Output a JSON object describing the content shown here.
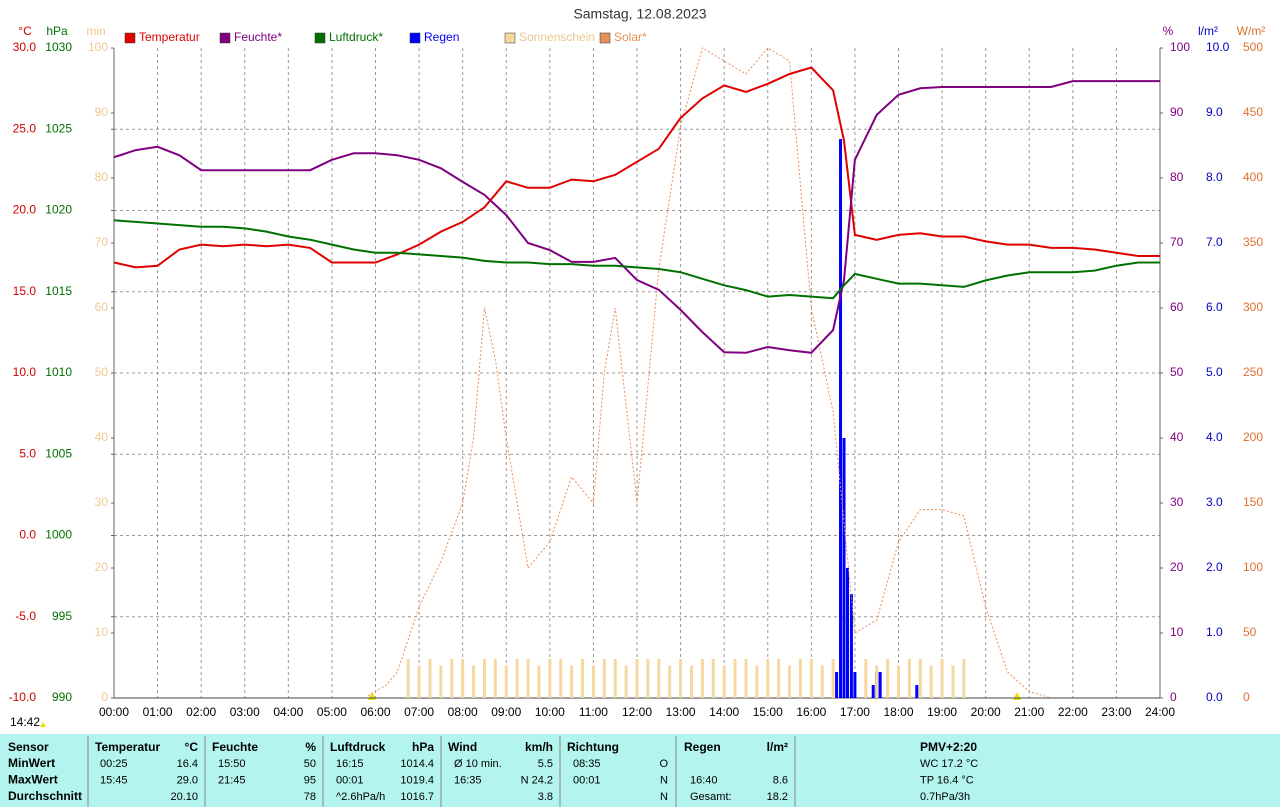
{
  "chart_data": {
    "type": "line",
    "title": "Samstag, 12.08.2023",
    "timestamp": "14:42",
    "grid": true,
    "xlim": [
      0,
      24
    ],
    "xticks": [
      {
        "value": 0,
        "label": "00:00"
      },
      {
        "value": 1,
        "label": "01:00"
      },
      {
        "value": 2,
        "label": "02:00"
      },
      {
        "value": 3,
        "label": "03:00"
      },
      {
        "value": 4,
        "label": "04:00"
      },
      {
        "value": 5,
        "label": "05:00"
      },
      {
        "value": 6,
        "label": "06:00"
      },
      {
        "value": 7,
        "label": "07:00"
      },
      {
        "value": 8,
        "label": "08:00"
      },
      {
        "value": 9,
        "label": "09:00"
      },
      {
        "value": 10,
        "label": "10:00"
      },
      {
        "value": 11,
        "label": "11:00"
      },
      {
        "value": 12,
        "label": "12:00"
      },
      {
        "value": 13,
        "label": "13:00"
      },
      {
        "value": 14,
        "label": "14:00"
      },
      {
        "value": 15,
        "label": "15:00"
      },
      {
        "value": 16,
        "label": "16:00"
      },
      {
        "value": 17,
        "label": "17:00"
      },
      {
        "value": 18,
        "label": "18:00"
      },
      {
        "value": 19,
        "label": "19:00"
      },
      {
        "value": 20,
        "label": "20:00"
      },
      {
        "value": 21,
        "label": "21:00"
      },
      {
        "value": 22,
        "label": "22:00"
      },
      {
        "value": 23,
        "label": "23:00"
      },
      {
        "value": 24,
        "label": "24:00"
      }
    ],
    "axes": {
      "temp": {
        "label": "°C",
        "side": "left",
        "color": "#d00000",
        "ylim": [
          -10,
          30
        ],
        "yticks": [
          {
            "value": -10,
            "label": "-10.0"
          },
          {
            "value": -5,
            "label": "-5.0"
          },
          {
            "value": 0,
            "label": "0.0"
          },
          {
            "value": 5,
            "label": "5.0"
          },
          {
            "value": 10,
            "label": "10.0"
          },
          {
            "value": 15,
            "label": "15.0"
          },
          {
            "value": 20,
            "label": "20.0"
          },
          {
            "value": 25,
            "label": "25.0"
          },
          {
            "value": 30,
            "label": "30.0"
          }
        ]
      },
      "press": {
        "label": "hPa",
        "side": "left",
        "color": "#007000",
        "ylim": [
          990,
          1030
        ],
        "yticks": [
          990,
          995,
          1000,
          1005,
          1010,
          1015,
          1020,
          1025,
          1030
        ]
      },
      "min": {
        "label": "min",
        "side": "left",
        "color": "#f0c890",
        "ylim": [
          0,
          100
        ],
        "yticks": [
          0,
          10,
          20,
          30,
          40,
          50,
          60,
          70,
          80,
          90,
          100
        ]
      },
      "hum": {
        "label": "%",
        "side": "right",
        "color": "#800080",
        "ylim": [
          0,
          100
        ],
        "yticks": [
          0,
          10,
          20,
          30,
          40,
          50,
          60,
          70,
          80,
          90,
          100
        ]
      },
      "rain": {
        "label": "l/m²",
        "side": "right",
        "color": "#0000c0",
        "ylim": [
          0,
          10
        ],
        "yticks": [
          {
            "value": 0,
            "label": "0.0"
          },
          {
            "value": 1,
            "label": "1.0"
          },
          {
            "value": 2,
            "label": "2.0"
          },
          {
            "value": 3,
            "label": "3.0"
          },
          {
            "value": 4,
            "label": "4.0"
          },
          {
            "value": 5,
            "label": "5.0"
          },
          {
            "value": 6,
            "label": "6.0"
          },
          {
            "value": 7,
            "label": "7.0"
          },
          {
            "value": 8,
            "label": "8.0"
          },
          {
            "value": 9,
            "label": "9.0"
          },
          {
            "value": 10,
            "label": "10.0"
          }
        ]
      },
      "solar": {
        "label": "W/m²",
        "side": "right",
        "color": "#e07030",
        "ylim": [
          0,
          500
        ],
        "yticks": [
          0,
          50,
          100,
          150,
          200,
          250,
          300,
          350,
          400,
          450,
          500
        ]
      }
    },
    "series": [
      {
        "name": "Temperatur",
        "color": "#e00000",
        "axis": "temp",
        "kind": "line",
        "x": [
          0,
          0.5,
          1,
          1.5,
          2,
          2.5,
          3,
          3.5,
          4,
          4.5,
          5,
          5.5,
          6,
          6.5,
          7,
          7.5,
          8,
          8.5,
          9,
          9.5,
          10,
          10.5,
          11,
          11.5,
          12,
          12.5,
          13,
          13.5,
          14,
          14.5,
          15,
          15.5,
          16,
          16.5,
          16.75,
          17,
          17.5,
          18,
          18.5,
          19,
          19.5,
          20,
          20.5,
          21,
          21.5,
          22,
          22.5,
          23,
          23.5,
          24
        ],
        "values": [
          16.8,
          16.5,
          16.6,
          17.6,
          17.9,
          17.8,
          17.9,
          17.8,
          17.9,
          17.7,
          16.8,
          16.8,
          16.8,
          17.3,
          17.9,
          18.7,
          19.3,
          20.2,
          21.8,
          21.4,
          21.4,
          21.9,
          21.8,
          22.2,
          23.0,
          23.8,
          25.7,
          26.9,
          27.7,
          27.3,
          27.8,
          28.4,
          28.8,
          27.4,
          24.3,
          18.5,
          18.2,
          18.5,
          18.6,
          18.4,
          18.4,
          18.1,
          17.9,
          17.9,
          17.7,
          17.7,
          17.6,
          17.4,
          17.2,
          17.2
        ]
      },
      {
        "name": "Feuchte*",
        "color": "#800080",
        "axis": "hum",
        "kind": "line",
        "x": [
          0,
          0.5,
          1,
          1.5,
          2,
          2.5,
          3,
          3.5,
          4,
          4.5,
          5,
          5.5,
          6,
          6.5,
          7,
          7.5,
          8,
          8.5,
          9,
          9.5,
          10,
          10.5,
          11,
          11.5,
          12,
          12.5,
          13,
          13.5,
          14,
          14.5,
          15,
          15.5,
          16,
          16.5,
          16.75,
          17,
          17.5,
          18,
          18.5,
          19,
          19.5,
          20,
          20.5,
          21,
          21.5,
          22,
          22.5,
          23,
          23.5,
          24
        ],
        "values": [
          83.2,
          84.3,
          84.8,
          83.5,
          81.2,
          81.2,
          81.2,
          81.2,
          81.2,
          81.2,
          82.8,
          83.8,
          83.8,
          83.5,
          82.8,
          81.5,
          79.4,
          77.4,
          74.3,
          70.0,
          68.9,
          67.1,
          67.1,
          67.7,
          64.3,
          62.8,
          59.7,
          56.3,
          53.2,
          53.1,
          54.0,
          53.5,
          53.1,
          56.6,
          64.3,
          82.8,
          89.7,
          92.8,
          93.8,
          94.0,
          94.0,
          94.0,
          94.0,
          94.0,
          94.0,
          94.9,
          94.9,
          94.9,
          94.9,
          94.9
        ]
      },
      {
        "name": "Luftdruck*",
        "color": "#007000",
        "axis": "press",
        "kind": "line",
        "x": [
          0,
          0.5,
          1,
          1.5,
          2,
          2.5,
          3,
          3.5,
          4,
          4.5,
          5,
          5.5,
          6,
          6.5,
          7,
          7.5,
          8,
          8.5,
          9,
          9.5,
          10,
          10.5,
          11,
          11.5,
          12,
          12.5,
          13,
          13.5,
          14,
          14.5,
          15,
          15.5,
          16,
          16.5,
          16.75,
          17,
          17.5,
          18,
          18.5,
          19,
          19.5,
          20,
          20.5,
          21,
          21.5,
          22,
          22.5,
          23,
          23.5,
          24
        ],
        "values": [
          1019.4,
          1019.3,
          1019.2,
          1019.1,
          1019.0,
          1019.0,
          1018.9,
          1018.7,
          1018.4,
          1018.2,
          1017.9,
          1017.6,
          1017.4,
          1017.4,
          1017.3,
          1017.2,
          1017.1,
          1016.9,
          1016.8,
          1016.8,
          1016.7,
          1016.7,
          1016.6,
          1016.6,
          1016.5,
          1016.4,
          1016.2,
          1015.8,
          1015.4,
          1015.1,
          1014.7,
          1014.8,
          1014.7,
          1014.6,
          1015.4,
          1016.1,
          1015.8,
          1015.5,
          1015.5,
          1015.4,
          1015.3,
          1015.7,
          1016.0,
          1016.2,
          1016.2,
          1016.2,
          1016.3,
          1016.6,
          1016.8,
          1016.8
        ]
      },
      {
        "name": "Regen",
        "color": "#0000ff",
        "axis": "rain",
        "kind": "bar",
        "x": [
          16.58,
          16.67,
          16.75,
          16.83,
          16.92,
          17,
          17.42,
          17.5,
          17.58,
          18.42
        ],
        "values": [
          0.4,
          8.6,
          4.0,
          2.0,
          1.6,
          0.4,
          0.2,
          0.4,
          0.4,
          0.2
        ]
      },
      {
        "name": "Sonnenschein",
        "color": "#f5d8a0",
        "axis": "min",
        "kind": "bar",
        "x": [
          6.75,
          7,
          7.25,
          7.5,
          7.75,
          8,
          8.25,
          8.5,
          8.75,
          9,
          9.25,
          9.5,
          9.75,
          10,
          10.25,
          10.5,
          10.75,
          11,
          11.25,
          11.5,
          11.75,
          12,
          12.25,
          12.5,
          12.75,
          13,
          13.25,
          13.5,
          13.75,
          14,
          14.25,
          14.5,
          14.75,
          15,
          15.25,
          15.5,
          15.75,
          16,
          16.25,
          16.5,
          17.25,
          17.5,
          17.75,
          18,
          18.25,
          18.5,
          18.75,
          19,
          19.25,
          19.5
        ],
        "values": [
          6,
          5,
          6,
          5,
          6,
          6,
          5,
          6,
          6,
          5,
          6,
          6,
          5,
          6,
          6,
          5,
          6,
          5,
          6,
          6,
          5,
          6,
          6,
          6,
          5,
          6,
          5,
          6,
          6,
          5,
          6,
          6,
          5,
          6,
          6,
          5,
          6,
          6,
          5,
          6,
          6,
          5,
          6,
          5,
          6,
          6,
          5,
          6,
          5,
          6
        ]
      },
      {
        "name": "Solar*",
        "color": "#e8905a",
        "axis": "solar",
        "kind": "dashed",
        "x": [
          5.75,
          6.25,
          6.5,
          7,
          7.5,
          8,
          8.25,
          8.5,
          8.75,
          9,
          9.5,
          10,
          10.5,
          11,
          11.25,
          11.5,
          12,
          12.5,
          13,
          13.5,
          14,
          14.5,
          15,
          15.5,
          16,
          16.5,
          17,
          17.5,
          18,
          18.5,
          19,
          19.5,
          20,
          20.5,
          21,
          21.5
        ],
        "values": [
          0,
          10,
          20,
          70,
          105,
          150,
          200,
          300,
          260,
          200,
          100,
          120,
          170,
          150,
          250,
          300,
          150,
          330,
          440,
          500,
          490,
          480,
          500,
          490,
          300,
          220,
          50,
          60,
          120,
          145,
          145,
          140,
          70,
          20,
          5,
          0
        ]
      }
    ]
  },
  "table": {
    "header": {
      "name": "Sensor",
      "temp_time": "Temperatur",
      "temp": "°C",
      "hum_time": "Feuchte",
      "hum": "%",
      "press_time": "Luftdruck",
      "press": "hPa",
      "wind_label": "Wind",
      "wind": "km/h",
      "dir_time": "Richtung",
      "rain_time": "Regen",
      "rain": "l/m²",
      "pmv": "PMV+2:20"
    },
    "rows": [
      {
        "name": "MinWert",
        "temp_time": "00:25",
        "temp": "16.4",
        "hum_time": "15:50",
        "hum": "50",
        "press_time": "16:15",
        "press": "1014.4",
        "wind_label": "Ø 10 min.",
        "wind": "5.5",
        "dir_time": "08:35",
        "dir": "O",
        "pmv": "WC 17.2 °C"
      },
      {
        "name": "MaxWert",
        "temp_time": "15:45",
        "temp": "29.0",
        "hum_time": "21:45",
        "hum": "95",
        "press_time": "00:01",
        "press": "1019.4",
        "wind_label": "16:35",
        "wind": "N 24.2",
        "dir_time": "00:01",
        "dir": "N",
        "rain_time": "16:40",
        "rain": "8.6",
        "pmv": "TP 16.4 °C"
      },
      {
        "name": "Durchschnitt",
        "temp": "20.10",
        "hum": "78",
        "press_time": "^2.6hPa/h",
        "press": "1016.7",
        "wind": "3.8",
        "dir": "N",
        "rain_time": "Gesamt:",
        "rain": "18.2",
        "pmv": "0.7hPa/3h"
      }
    ]
  }
}
